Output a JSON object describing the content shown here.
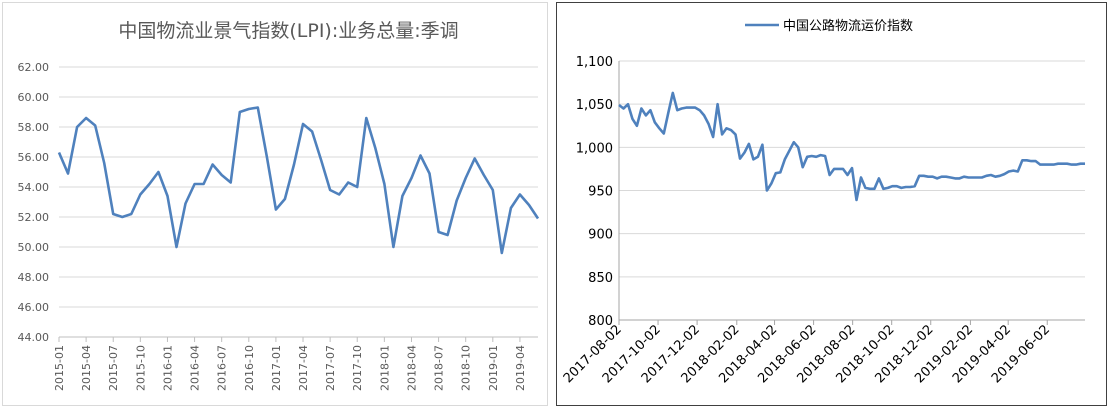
{
  "left_chart": {
    "colors": {
      "line": "#4f81bd",
      "grid": "#d9d9d9",
      "axis": "#bfbfbf",
      "text": "#595959",
      "title": "#595959"
    },
    "chart_data": {
      "type": "line",
      "title": "中国物流业景气指数(LPI):业务总量:季调",
      "ylim": [
        44,
        62
      ],
      "ytick_values": [
        44,
        46,
        48,
        50,
        52,
        54,
        56,
        58,
        60,
        62
      ],
      "ytick_labels": [
        "44.00",
        "46.00",
        "48.00",
        "50.00",
        "52.00",
        "54.00",
        "56.00",
        "58.00",
        "60.00",
        "62.00"
      ],
      "x": [
        "2015-01",
        "2015-02",
        "2015-03",
        "2015-04",
        "2015-05",
        "2015-06",
        "2015-07",
        "2015-08",
        "2015-09",
        "2015-10",
        "2015-11",
        "2015-12",
        "2016-01",
        "2016-02",
        "2016-03",
        "2016-04",
        "2016-05",
        "2016-06",
        "2016-07",
        "2016-08",
        "2016-09",
        "2016-10",
        "2016-11",
        "2016-12",
        "2017-01",
        "2017-02",
        "2017-03",
        "2017-04",
        "2017-05",
        "2017-06",
        "2017-07",
        "2017-08",
        "2017-09",
        "2017-10",
        "2017-11",
        "2017-12",
        "2018-01",
        "2018-02",
        "2018-03",
        "2018-04",
        "2018-05",
        "2018-06",
        "2018-07",
        "2018-08",
        "2018-09",
        "2018-10",
        "2018-11",
        "2018-12",
        "2019-01",
        "2019-02",
        "2019-03",
        "2019-04",
        "2019-05",
        "2019-06"
      ],
      "xtick_labels": [
        "2015-01",
        "2015-04",
        "2015-07",
        "2015-10",
        "2016-01",
        "2016-04",
        "2016-07",
        "2016-10",
        "2017-01",
        "2017-04",
        "2017-07",
        "2017-10",
        "2018-01",
        "2018-04",
        "2018-07",
        "2018-10",
        "2019-01",
        "2019-04"
      ],
      "series": [
        {
          "values": [
            56.3,
            54.9,
            58.0,
            58.6,
            58.1,
            55.6,
            52.2,
            52.0,
            52.2,
            53.5,
            54.2,
            55.0,
            53.4,
            50.0,
            52.9,
            54.2,
            54.2,
            55.5,
            54.8,
            54.3,
            59.0,
            59.2,
            59.3,
            56.0,
            52.5,
            53.2,
            55.5,
            58.2,
            57.7,
            55.8,
            53.8,
            53.5,
            54.3,
            54.0,
            58.6,
            56.6,
            54.2,
            50.0,
            53.4,
            54.6,
            56.1,
            54.9,
            51.0,
            50.8,
            53.1,
            54.6,
            55.9,
            54.8,
            53.8,
            49.6,
            52.6,
            53.5,
            52.8,
            51.9
          ]
        }
      ]
    }
  },
  "right_chart": {
    "colors": {
      "line": "#4f81bd",
      "grid": "#d9d9d9",
      "axis": "#a6a6a6",
      "text": "#000000"
    },
    "chart_data": {
      "type": "line",
      "ylim": [
        800,
        1100
      ],
      "ytick_values": [
        800,
        850,
        900,
        950,
        1000,
        1050,
        1100
      ],
      "ytick_labels": [
        "800",
        "850",
        "900",
        "950",
        "1,000",
        "1,050",
        "1,100"
      ],
      "xlim": [
        "2017-08-02",
        "2019-07-31"
      ],
      "xtick_labels": [
        "2017-08-02",
        "2017-10-02",
        "2017-12-02",
        "2018-02-02",
        "2018-04-02",
        "2018-06-02",
        "2018-08-02",
        "2018-10-02",
        "2018-12-02",
        "2019-02-02",
        "2019-04-02",
        "2019-06-02"
      ],
      "legend_position": "top-center",
      "series": [
        {
          "name": "中国公路物流运价指数",
          "x": [
            "2017-08-02",
            "2017-08-09",
            "2017-08-16",
            "2017-08-23",
            "2017-08-30",
            "2017-09-06",
            "2017-09-13",
            "2017-09-20",
            "2017-09-27",
            "2017-10-04",
            "2017-10-11",
            "2017-10-18",
            "2017-10-25",
            "2017-11-01",
            "2017-11-08",
            "2017-11-15",
            "2017-11-22",
            "2017-11-29",
            "2017-12-06",
            "2017-12-13",
            "2017-12-20",
            "2017-12-27",
            "2018-01-03",
            "2018-01-10",
            "2018-01-17",
            "2018-01-24",
            "2018-01-31",
            "2018-02-07",
            "2018-02-14",
            "2018-02-21",
            "2018-02-28",
            "2018-03-07",
            "2018-03-14",
            "2018-03-21",
            "2018-03-28",
            "2018-04-04",
            "2018-04-11",
            "2018-04-18",
            "2018-04-25",
            "2018-05-02",
            "2018-05-09",
            "2018-05-16",
            "2018-05-23",
            "2018-05-30",
            "2018-06-06",
            "2018-06-13",
            "2018-06-20",
            "2018-06-27",
            "2018-07-04",
            "2018-07-11",
            "2018-07-18",
            "2018-07-25",
            "2018-08-01",
            "2018-08-08",
            "2018-08-15",
            "2018-08-22",
            "2018-08-29",
            "2018-09-05",
            "2018-09-12",
            "2018-09-19",
            "2018-09-26",
            "2018-10-03",
            "2018-10-10",
            "2018-10-17",
            "2018-10-24",
            "2018-10-31",
            "2018-11-07",
            "2018-11-14",
            "2018-11-21",
            "2018-11-28",
            "2018-12-05",
            "2018-12-12",
            "2018-12-19",
            "2018-12-26",
            "2019-01-02",
            "2019-01-09",
            "2019-01-16",
            "2019-01-23",
            "2019-01-30",
            "2019-02-06",
            "2019-02-13",
            "2019-02-20",
            "2019-02-27",
            "2019-03-06",
            "2019-03-13",
            "2019-03-20",
            "2019-03-27",
            "2019-04-03",
            "2019-04-10",
            "2019-04-17",
            "2019-04-24",
            "2019-05-01",
            "2019-05-08",
            "2019-05-15",
            "2019-05-22",
            "2019-05-29",
            "2019-06-05",
            "2019-06-12",
            "2019-06-19",
            "2019-06-26",
            "2019-07-03",
            "2019-07-10",
            "2019-07-17",
            "2019-07-24",
            "2019-07-31"
          ],
          "values": [
            1049,
            1045,
            1050,
            1033,
            1025,
            1045,
            1037,
            1043,
            1029,
            1022,
            1016,
            1040,
            1063,
            1043,
            1045,
            1046,
            1046,
            1046,
            1043,
            1037,
            1027,
            1012,
            1050,
            1015,
            1022,
            1020,
            1015,
            987,
            994,
            1004,
            986,
            989,
            1003,
            950,
            958,
            970,
            971,
            986,
            996,
            1006,
            1000,
            977,
            989,
            990,
            989,
            991,
            990,
            968,
            975,
            975,
            975,
            968,
            976,
            939,
            965,
            953,
            952,
            952,
            964,
            952,
            953,
            955,
            955,
            953,
            954,
            954,
            955,
            967,
            967,
            966,
            966,
            964,
            966,
            966,
            965,
            964,
            964,
            966,
            965,
            965,
            965,
            965,
            967,
            968,
            966,
            967,
            969,
            972,
            973,
            972,
            985,
            985,
            984,
            984,
            980,
            980,
            980,
            980,
            981,
            981,
            981,
            980,
            980,
            981,
            981
          ]
        }
      ]
    }
  }
}
